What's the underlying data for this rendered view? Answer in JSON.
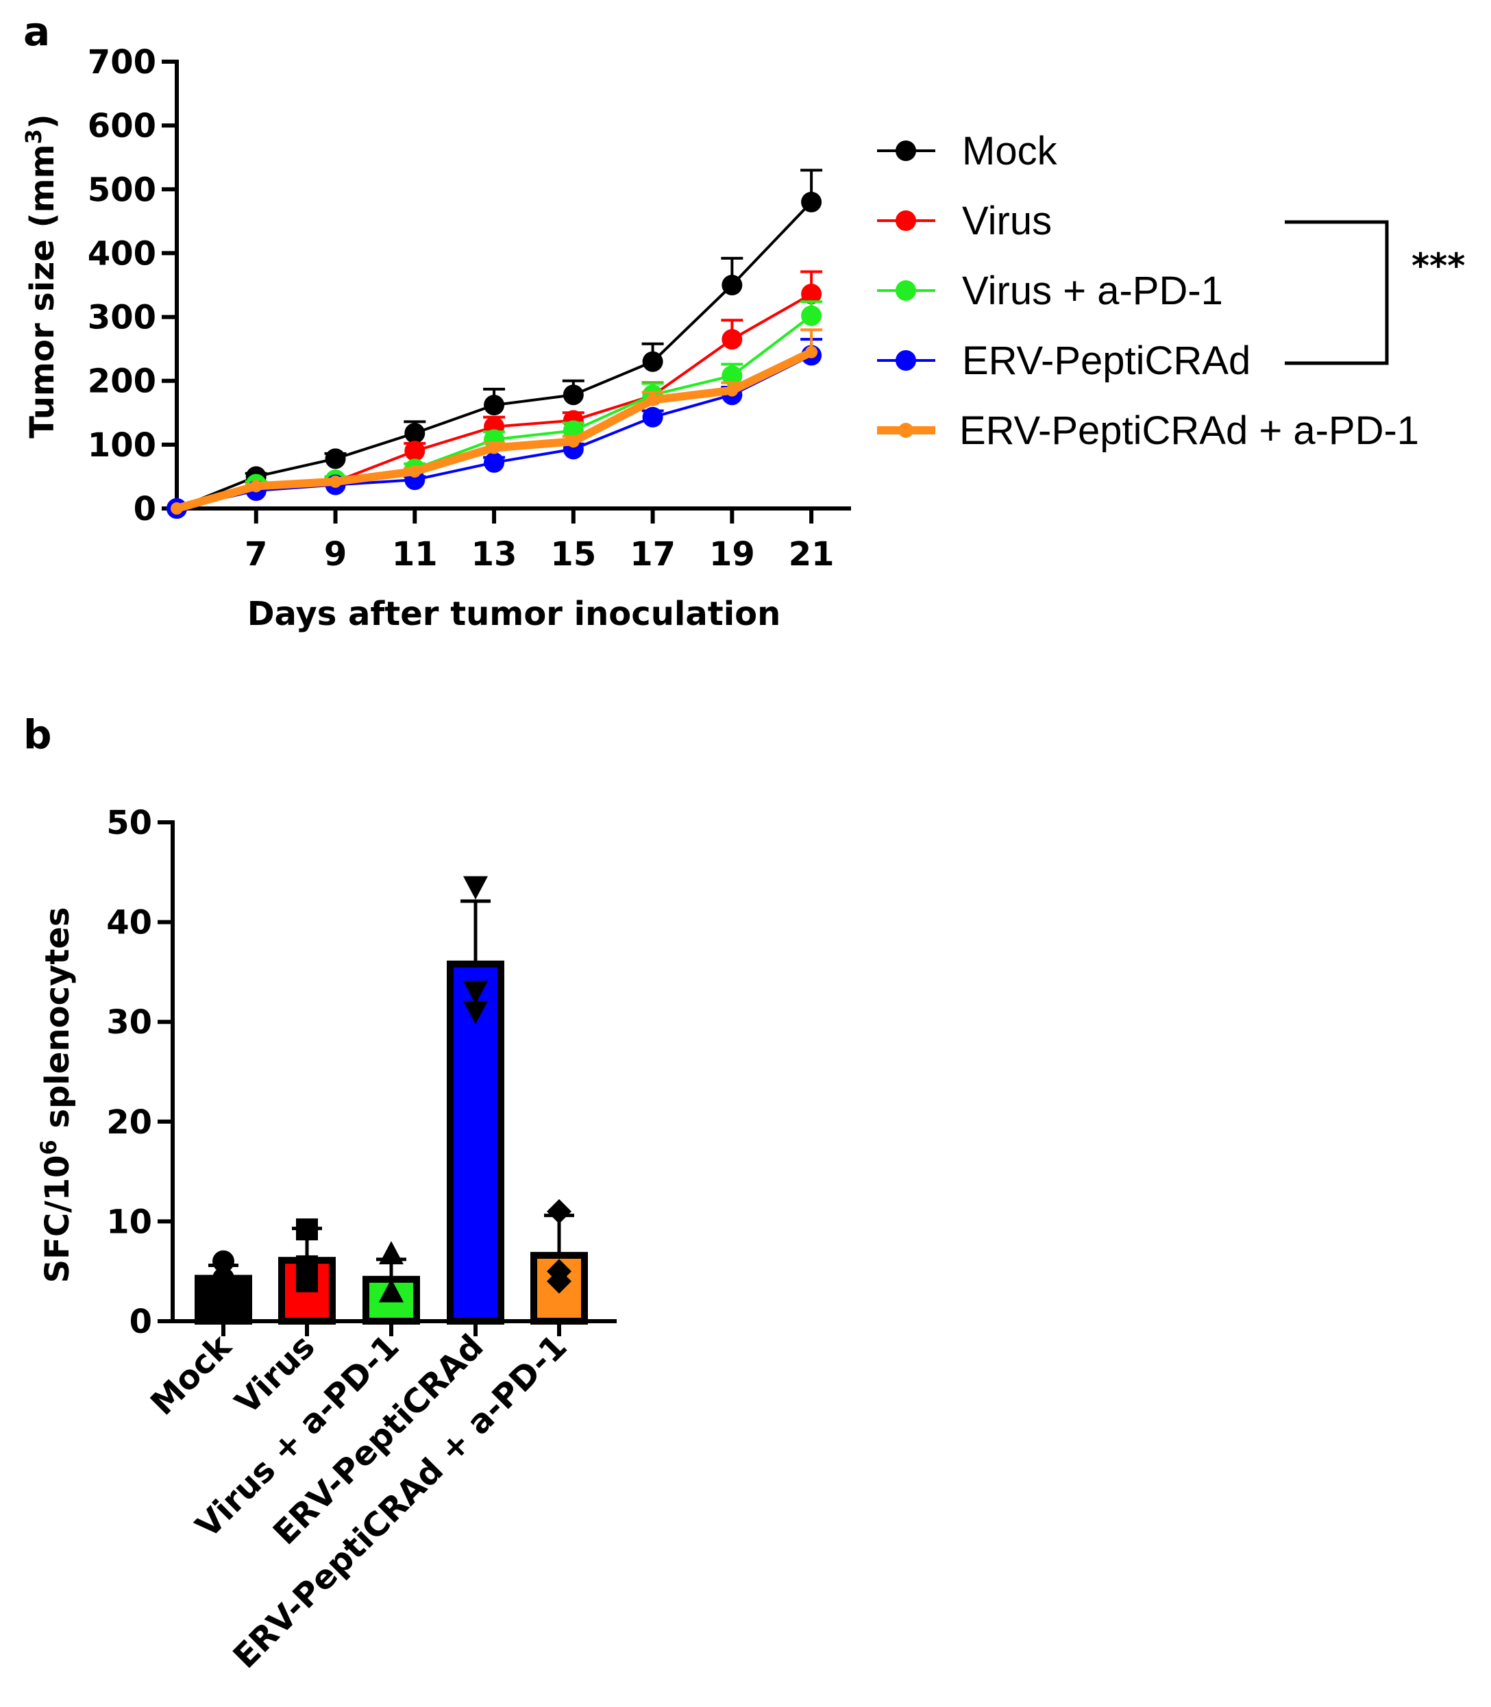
{
  "panels": {
    "a": "a",
    "b": "b"
  },
  "chart_data": [
    {
      "type": "line",
      "panel": "a",
      "title": "",
      "xlabel": "Days after tumor inoculation",
      "ylabel_main": "Tumor size  (mm",
      "ylabel_sup": "3",
      "ylabel_end": ")",
      "xlim": [
        5,
        22
      ],
      "ylim": [
        0,
        700
      ],
      "x_ticks": [
        7,
        9,
        11,
        13,
        15,
        17,
        19,
        21
      ],
      "y_ticks": [
        0,
        100,
        200,
        300,
        400,
        500,
        600,
        700
      ],
      "x": [
        5,
        7,
        9,
        11,
        13,
        15,
        17,
        19,
        21
      ],
      "legend_position": "right",
      "series": [
        {
          "name": "Mock",
          "color": "#000000",
          "values": [
            0,
            50,
            78,
            118,
            162,
            178,
            230,
            350,
            480
          ],
          "errors": [
            0,
            5,
            8,
            18,
            25,
            22,
            28,
            42,
            50
          ]
        },
        {
          "name": " Virus",
          "color": "#ff0000",
          "values": [
            0,
            28,
            42,
            90,
            128,
            138,
            177,
            265,
            336
          ],
          "errors": [
            0,
            4,
            6,
            12,
            15,
            12,
            20,
            30,
            35
          ]
        },
        {
          "name": "Virus + a-PD-1",
          "color": "#22ee22",
          "values": [
            0,
            38,
            45,
            62,
            108,
            122,
            178,
            208,
            302
          ],
          "errors": [
            0,
            4,
            5,
            8,
            12,
            12,
            18,
            18,
            22
          ]
        },
        {
          "name": "ERV-PeptiCRAd",
          "color": "#0000ff",
          "values": [
            0,
            28,
            37,
            45,
            72,
            93,
            143,
            178,
            240
          ],
          "errors": [
            0,
            3,
            4,
            5,
            8,
            8,
            10,
            12,
            25
          ]
        },
        {
          "name": "ERV-PeptiCRAd + a-PD-1",
          "color": "#ff8c1a",
          "values": [
            0,
            35,
            42,
            58,
            95,
            105,
            170,
            185,
            245
          ],
          "errors": [
            0,
            3,
            4,
            5,
            8,
            8,
            12,
            12,
            35
          ]
        }
      ],
      "significance": {
        "label": "***",
        "between": [
          "Virus",
          "ERV-PeptiCRAd"
        ]
      }
    },
    {
      "type": "bar",
      "panel": "b",
      "title": "",
      "ylabel_main": "SFC/10",
      "ylabel_sup": "6",
      "ylabel_end": " splenocytes",
      "ylim": [
        0,
        50
      ],
      "y_ticks": [
        0,
        10,
        20,
        30,
        40,
        50
      ],
      "categories": [
        "Mock",
        "Virus",
        "Virus + a-PD-1",
        "ERV-PeptiCRAd",
        "ERV-PeptiCRAd + a-PD-1"
      ],
      "values": [
        4.3,
        6.1,
        4.2,
        35.8,
        6.6
      ],
      "errors": [
        1.3,
        3.2,
        2.0,
        6.3,
        4.0
      ],
      "colors": [
        "#000000",
        "#ff0000",
        "#22ee22",
        "#0000ff",
        "#ff8c1a"
      ],
      "markers": [
        "circle",
        "square",
        "triangle-up",
        "triangle-down",
        "diamond"
      ],
      "points": [
        [
          6.0,
          4.3,
          3.0
        ],
        [
          9.2,
          4.0,
          5.5
        ],
        [
          6.8,
          3.0,
          3.0
        ],
        [
          43.5,
          33.0,
          31.0
        ],
        [
          11.0,
          5.0,
          4.0
        ]
      ]
    }
  ]
}
